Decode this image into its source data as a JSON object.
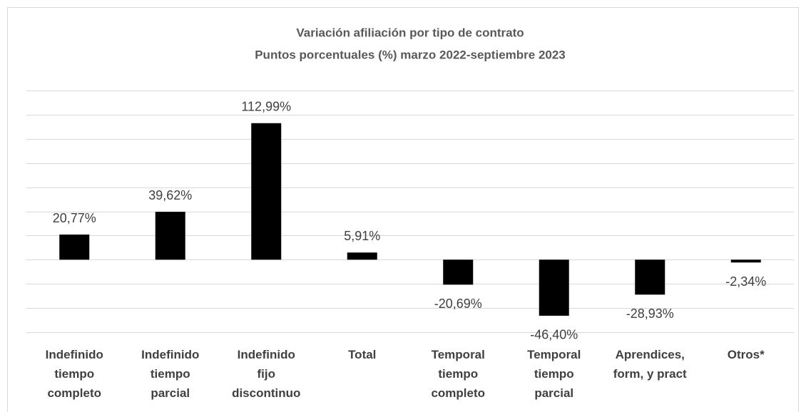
{
  "chart_data": {
    "type": "bar",
    "title": "Variación afiliación por tipo de contrato",
    "subtitle": "Puntos porcentuales (%) marzo 2022-septiembre 2023",
    "categories": [
      "Indefinido\ntiempo\ncompleto",
      "Indefinido\ntiempo\nparcial",
      "Indefinido\nfijo\ndiscontinuo",
      "Total",
      "Temporal\ntiempo\ncompleto",
      "Temporal\ntiempo\nparcial",
      "Aprendices,\nform, y pract",
      "Otros*"
    ],
    "values": [
      20.77,
      39.62,
      112.99,
      5.91,
      -20.69,
      -46.4,
      -28.93,
      -2.34
    ],
    "value_labels": [
      "20,77%",
      "39,62%",
      "112,99%",
      "5,91%",
      "-20,69%",
      "-46,40%",
      "-28,93%",
      "-2,34%"
    ],
    "color": "#000000",
    "ylim": [
      -60,
      140
    ],
    "yticks": [
      -60,
      -40,
      -20,
      0,
      20,
      40,
      60,
      80,
      100,
      120,
      140
    ],
    "grid": true
  }
}
